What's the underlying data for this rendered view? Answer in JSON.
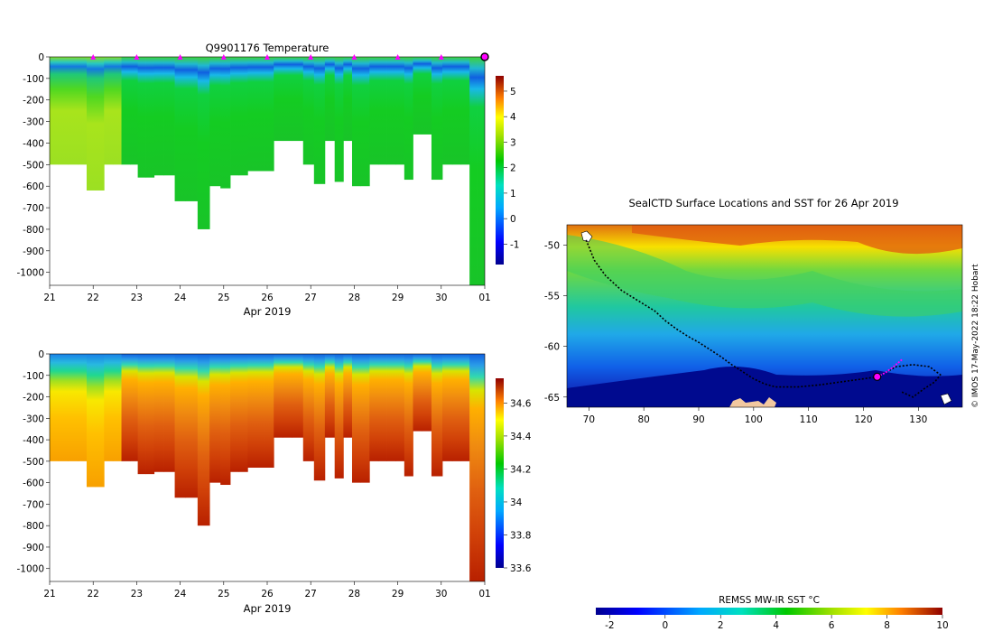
{
  "chart_data": [
    {
      "type": "heatmap",
      "title": "Q9901176  Temperature",
      "xlabel": "Apr 2019",
      "ylabel": "",
      "x_tick_labels": [
        "21",
        "22",
        "23",
        "24",
        "25",
        "26",
        "27",
        "28",
        "29",
        "30",
        "01"
      ],
      "y_tick_labels": [
        "0",
        "-100",
        "-200",
        "-300",
        "-400",
        "-500",
        "-600",
        "-700",
        "-800",
        "-900",
        "-1000"
      ],
      "ylim": [
        -1060,
        0
      ],
      "x_range_days": [
        0,
        10
      ],
      "profile_times": [
        0.1,
        0.3,
        0.55,
        0.75,
        0.95,
        1.15,
        1.35,
        1.55,
        1.75,
        1.95,
        2.1,
        2.3,
        2.5,
        2.75,
        3.0,
        3.25,
        3.55,
        3.8,
        4.05,
        4.25,
        4.45,
        4.65,
        4.85,
        5.05,
        5.25,
        5.45,
        5.7,
        5.95,
        6.2,
        6.45,
        6.65,
        6.85,
        7.05,
        7.25,
        7.45,
        7.65,
        7.85,
        8.05,
        8.25,
        8.45,
        8.65,
        8.9,
        9.15,
        9.35,
        9.55,
        9.75,
        9.9
      ],
      "profile_depths": [
        500,
        500,
        500,
        500,
        620,
        620,
        500,
        500,
        500,
        500,
        560,
        560,
        550,
        550,
        670,
        670,
        800,
        600,
        610,
        550,
        550,
        530,
        530,
        530,
        390,
        390,
        390,
        500,
        590,
        390,
        580,
        390,
        600,
        600,
        500,
        500,
        500,
        500,
        570,
        360,
        360,
        570,
        500,
        500,
        500,
        1060,
        1060
      ],
      "marker_times": [
        1,
        2,
        3,
        4,
        5,
        6,
        7,
        8,
        9,
        10
      ],
      "colorbar": {
        "ticks": [
          "-1",
          "0",
          "1",
          "2",
          "3",
          "4",
          "5"
        ],
        "range": [
          -1.8,
          5.6
        ]
      }
    },
    {
      "type": "heatmap",
      "title": "",
      "xlabel": "Apr 2019",
      "ylabel": "",
      "x_tick_labels": [
        "21",
        "22",
        "23",
        "24",
        "25",
        "26",
        "27",
        "28",
        "29",
        "30",
        "01"
      ],
      "y_tick_labels": [
        "0",
        "-100",
        "-200",
        "-300",
        "-400",
        "-500",
        "-600",
        "-700",
        "-800",
        "-900",
        "-1000"
      ],
      "ylim": [
        -1060,
        0
      ],
      "colorbar": {
        "ticks": [
          "33.6",
          "33.8",
          "34",
          "34.2",
          "34.4",
          "34.6"
        ],
        "range": [
          33.6,
          34.75
        ]
      }
    },
    {
      "type": "heatmap",
      "title": "SealCTD Surface Locations and SST for 26 Apr 2019",
      "x_tick_labels": [
        "70",
        "80",
        "90",
        "100",
        "110",
        "120",
        "130"
      ],
      "y_tick_labels": [
        "-50",
        "-55",
        "-60",
        "-65"
      ],
      "xlim": [
        66,
        138
      ],
      "ylim": [
        -66,
        -48
      ],
      "track_lon": [
        69.5,
        71,
        73,
        76,
        79,
        82,
        84,
        86,
        88,
        90,
        92,
        94,
        96,
        98,
        100,
        102,
        104,
        108,
        112,
        116,
        120,
        122.5,
        124,
        126,
        129,
        132,
        134,
        133,
        131,
        129,
        127
      ],
      "track_lat": [
        -49.5,
        -51.5,
        -53,
        -54.5,
        -55.5,
        -56.5,
        -57.5,
        -58.3,
        -59,
        -59.6,
        -60.3,
        -61,
        -61.8,
        -62.5,
        -63.2,
        -63.7,
        -64,
        -64,
        -63.8,
        -63.5,
        -63.2,
        -63,
        -62.6,
        -62,
        -61.8,
        -62,
        -62.8,
        -63.5,
        -64.2,
        -65,
        -64.5
      ],
      "current_lon": 122.5,
      "current_lat": -63,
      "recent_lon": [
        122.5,
        124,
        125.5,
        127
      ],
      "recent_lat": [
        -63,
        -62.6,
        -62,
        -61.3
      ],
      "credit": "© IMOS 17-May-2022 18:22 Hobart",
      "colorbar": {
        "label": "REMSS MW-IR SST °C",
        "ticks": [
          "-2",
          "0",
          "2",
          "4",
          "6",
          "8",
          "10"
        ],
        "range": [
          -2.5,
          10
        ]
      }
    }
  ]
}
